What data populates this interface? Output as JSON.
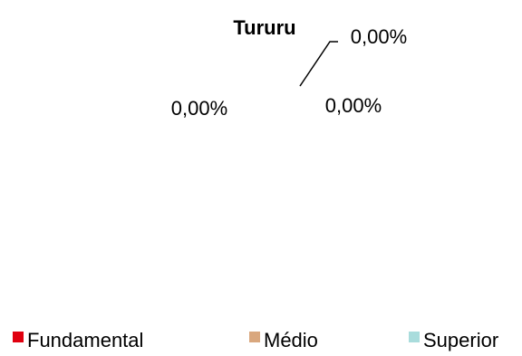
{
  "chart_data": {
    "type": "pie",
    "title": "Tururu",
    "categories": [
      "Fundamental",
      "Médio",
      "Superior"
    ],
    "values": [
      0,
      0,
      0
    ],
    "data_labels": [
      "0,00%",
      "0,00%",
      "0,00%"
    ],
    "colors": [
      "#e0000f",
      "#d9a77e",
      "#a9dcdc"
    ],
    "legend": "bottom",
    "grid": false
  }
}
